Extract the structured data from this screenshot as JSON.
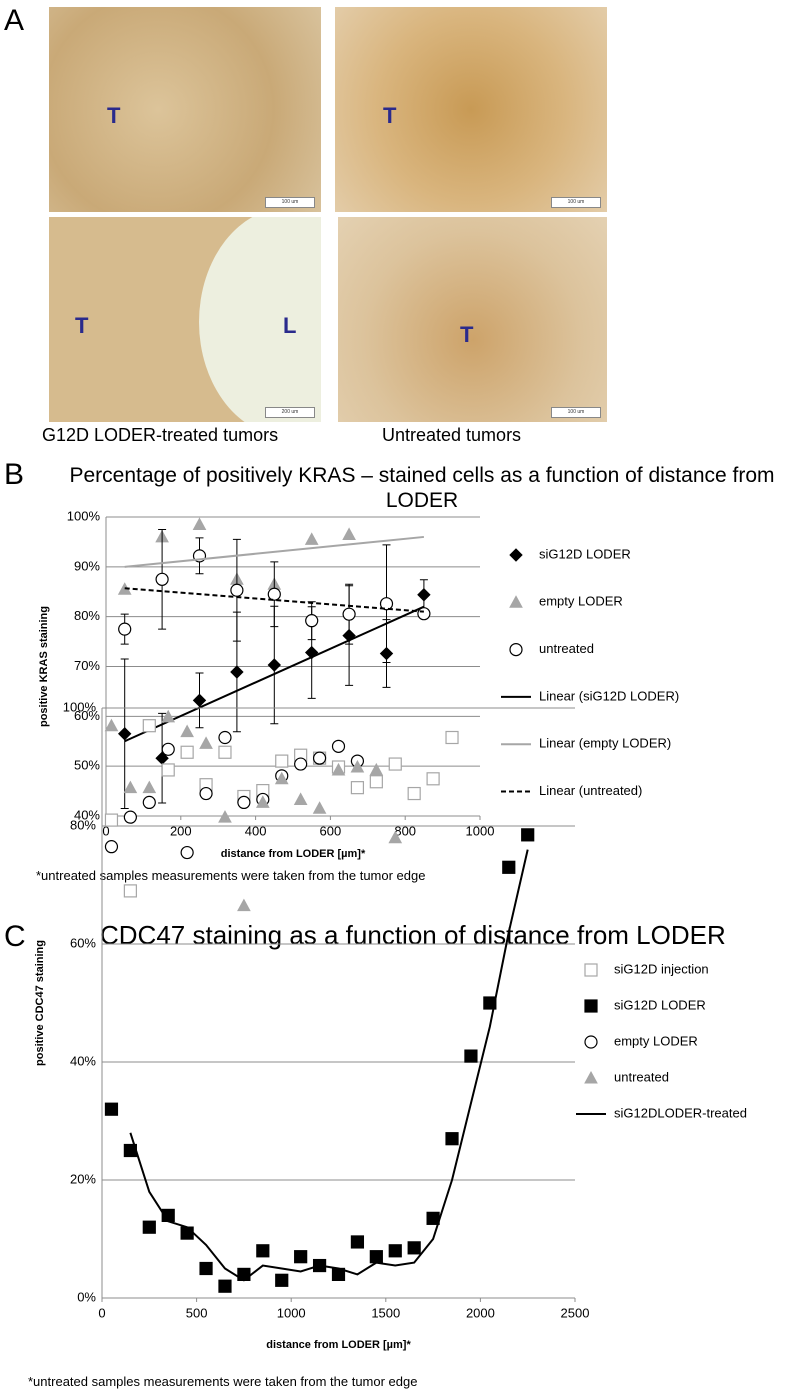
{
  "panel_a": {
    "label": "A",
    "images": [
      {
        "marks": [
          "T"
        ],
        "scale": "100 um"
      },
      {
        "marks": [
          "T"
        ],
        "scale": "100 um"
      },
      {
        "marks": [
          "T",
          "L"
        ],
        "scale": "200 um"
      },
      {
        "marks": [
          "T"
        ],
        "scale": "100 um"
      }
    ],
    "captions": [
      "G12D LODER-treated tumors",
      "Untreated tumors"
    ]
  },
  "chart_data": [
    {
      "type": "scatter",
      "panel_label": "B",
      "title": "Percentage of positively KRAS – stained cells as a function of distance from LODER",
      "x_label": "distance from LODER [µm]*",
      "y_label": "positive KRAS staining",
      "note": "*untreated samples measurements were taken from the tumor edge",
      "xlim": [
        0,
        1000
      ],
      "xticks": [
        0,
        200,
        400,
        600,
        800,
        1000
      ],
      "ylim": [
        40,
        100
      ],
      "yticks": [
        {
          "value": 40,
          "label": "40%"
        },
        {
          "value": 50,
          "label": "50%"
        },
        {
          "value": 60,
          "label": "60%"
        },
        {
          "value": 70,
          "label": "70%"
        },
        {
          "value": 80,
          "label": "80%"
        },
        {
          "value": 90,
          "label": "90%"
        },
        {
          "value": 100,
          "label": "100%"
        }
      ],
      "grid": true,
      "series": [
        {
          "name": "siG12D LODER",
          "marker": "diamond",
          "color": "#000000",
          "filled": true,
          "x": [
            50,
            150,
            250,
            350,
            450,
            550,
            650,
            750,
            850
          ],
          "values": [
            56.5,
            51.6,
            63.2,
            68.9,
            70.3,
            72.8,
            76.2,
            72.6,
            84.4
          ],
          "errors": [
            15,
            9,
            5.5,
            12,
            11.8,
            9.2,
            10,
            6.8,
            3
          ]
        },
        {
          "name": "empty LODER",
          "marker": "triangle",
          "color": "#a6a6a6",
          "filled": true,
          "x": [
            50,
            150,
            250,
            350,
            450,
            550,
            650
          ],
          "values": [
            85.5,
            96,
            98.5,
            87.5,
            86.5,
            95.5,
            96.5
          ]
        },
        {
          "name": "untreated",
          "marker": "circle",
          "color": "#000000",
          "filled": false,
          "x": [
            50,
            150,
            250,
            350,
            450,
            550,
            650,
            750,
            850
          ],
          "values": [
            77.5,
            87.5,
            92.2,
            85.3,
            84.5,
            79.2,
            80.5,
            82.6,
            80.6
          ],
          "errors": [
            3,
            10,
            3.6,
            10.2,
            6.5,
            3.8,
            6,
            11.8,
            0
          ]
        },
        {
          "name": "Linear (siG12D LODER)",
          "marker": "line",
          "color": "#000000",
          "dash": false,
          "x": [
            50,
            850
          ],
          "values": [
            55,
            82
          ]
        },
        {
          "name": "Linear (empty LODER)",
          "marker": "line",
          "color": "#a6a6a6",
          "dash": false,
          "x": [
            50,
            850
          ],
          "values": [
            90,
            96
          ]
        },
        {
          "name": "Linear (untreated)",
          "marker": "line",
          "color": "#000000",
          "dash": true,
          "x": [
            50,
            850
          ],
          "values": [
            85.7,
            81
          ]
        }
      ]
    },
    {
      "type": "scatter",
      "panel_label": "C",
      "title": "CDC47 staining as a function of distance from LODER",
      "x_label": "distance from LODER [µm]*",
      "y_label": "positive CDC47 staining",
      "note": "*untreated samples measurements were taken from the tumor edge",
      "xlim": [
        0,
        2500
      ],
      "xticks": [
        0,
        500,
        1000,
        1500,
        2000,
        2500
      ],
      "ylim": [
        0,
        100
      ],
      "yticks": [
        {
          "value": 0,
          "label": "0%"
        },
        {
          "value": 20,
          "label": "20%"
        },
        {
          "value": 40,
          "label": "40%"
        },
        {
          "value": 60,
          "label": "60%"
        },
        {
          "value": 80,
          "label": "80%"
        },
        {
          "value": 100,
          "label": "100%"
        }
      ],
      "grid": true,
      "series": [
        {
          "name": "siG12D injection",
          "marker": "square",
          "color": "#a6a6a6",
          "filled": false,
          "x": [
            50,
            150,
            250,
            350,
            450,
            550,
            650,
            750,
            850,
            950,
            1050,
            1150,
            1250,
            1350,
            1450,
            1550,
            1650,
            1750,
            1850
          ],
          "values": [
            81,
            69,
            97,
            89.5,
            92.5,
            87,
            92.5,
            85,
            86,
            91,
            92,
            91.5,
            90,
            86.5,
            87.5,
            90.5,
            85.5,
            88,
            95
          ]
        },
        {
          "name": "siG12D LODER",
          "marker": "square",
          "color": "#000000",
          "filled": true,
          "x": [
            50,
            150,
            250,
            350,
            450,
            550,
            650,
            750,
            850,
            950,
            1050,
            1150,
            1250,
            1350,
            1450,
            1550,
            1650,
            1750,
            1850,
            1950,
            2050,
            2150,
            2250
          ],
          "values": [
            32,
            25,
            12,
            14,
            11,
            5,
            2,
            4,
            8,
            3,
            7,
            5.5,
            4,
            9.5,
            7,
            8,
            8.5,
            13.5,
            27,
            41,
            50,
            73,
            78.5
          ]
        },
        {
          "name": "empty LODER",
          "marker": "circle",
          "color": "#000000",
          "filled": false,
          "x": [
            50,
            150,
            250,
            350,
            450,
            550,
            650,
            750,
            850,
            950,
            1050,
            1150,
            1250,
            1350
          ],
          "values": [
            76.5,
            81.5,
            84,
            93,
            75.5,
            85.5,
            95,
            84,
            84.5,
            88.5,
            90.5,
            91.5,
            93.5,
            91
          ]
        },
        {
          "name": "untreated",
          "marker": "triangle",
          "color": "#a6a6a6",
          "filled": true,
          "x": [
            50,
            150,
            250,
            350,
            450,
            550,
            650,
            750,
            850,
            950,
            1050,
            1150,
            1250,
            1350,
            1450,
            1550
          ],
          "values": [
            97,
            86.5,
            86.5,
            98.5,
            96,
            94,
            81.5,
            66.5,
            84,
            88,
            84.5,
            83,
            89.5,
            90,
            89.5,
            78
          ]
        },
        {
          "name": "siG12DLODER-treated",
          "marker": "line",
          "color": "#000000",
          "dash": false,
          "x": [
            150,
            250,
            350,
            450,
            550,
            650,
            750,
            850,
            950,
            1050,
            1150,
            1250,
            1350,
            1450,
            1550,
            1650,
            1750,
            1850,
            1950,
            2050,
            2150,
            2250
          ],
          "values": [
            28,
            18,
            13,
            12,
            9,
            5,
            3,
            5.5,
            5,
            4.5,
            5.5,
            5,
            4,
            6,
            5.5,
            6,
            10,
            20,
            33,
            46,
            62,
            76
          ]
        }
      ]
    }
  ]
}
